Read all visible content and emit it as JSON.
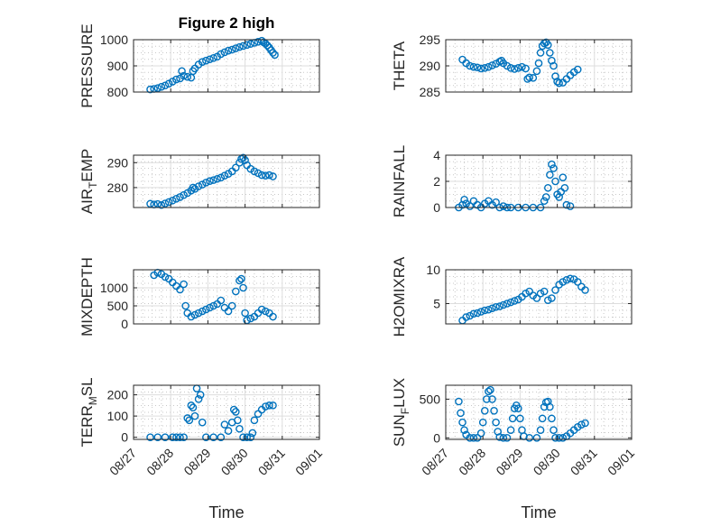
{
  "figure": {
    "title": "Figure 2 high",
    "xlabel": "Time",
    "x_ticks": [
      "08/27",
      "08/28",
      "08/29",
      "08/30",
      "08/31",
      "09/01"
    ]
  },
  "chart_data": [
    {
      "type": "scatter",
      "ylabel": "PRESSURE",
      "ylabel_main": "PRESSURE",
      "ylabel_sub": "",
      "ylabel_tail": "",
      "x_range": [
        "08/27",
        "09/01"
      ],
      "ylim": [
        800,
        1000
      ],
      "yticks": [
        800,
        900,
        1000
      ],
      "points": [
        [
          27.3,
          810
        ],
        [
          27.4,
          812
        ],
        [
          27.5,
          815
        ],
        [
          27.6,
          820
        ],
        [
          27.7,
          825
        ],
        [
          27.8,
          832
        ],
        [
          27.9,
          840
        ],
        [
          28.0,
          848
        ],
        [
          28.1,
          852
        ],
        [
          28.15,
          880
        ],
        [
          28.2,
          862
        ],
        [
          28.3,
          858
        ],
        [
          28.4,
          855
        ],
        [
          28.45,
          880
        ],
        [
          28.5,
          890
        ],
        [
          28.6,
          905
        ],
        [
          28.7,
          915
        ],
        [
          28.8,
          920
        ],
        [
          28.9,
          925
        ],
        [
          29.0,
          930
        ],
        [
          29.1,
          935
        ],
        [
          29.2,
          945
        ],
        [
          29.3,
          952
        ],
        [
          29.4,
          958
        ],
        [
          29.5,
          962
        ],
        [
          29.6,
          967
        ],
        [
          29.7,
          972
        ],
        [
          29.8,
          976
        ],
        [
          29.9,
          980
        ],
        [
          30.0,
          984
        ],
        [
          30.1,
          988
        ],
        [
          30.2,
          992
        ],
        [
          30.3,
          996
        ],
        [
          30.35,
          990
        ],
        [
          30.4,
          985
        ],
        [
          30.45,
          978
        ],
        [
          30.5,
          970
        ],
        [
          30.55,
          960
        ],
        [
          30.6,
          950
        ],
        [
          30.65,
          942
        ]
      ]
    },
    {
      "type": "scatter",
      "ylabel": "THETA",
      "ylabel_main": "THETA",
      "ylabel_sub": "",
      "ylabel_tail": "",
      "x_range": [
        "08/27",
        "09/01"
      ],
      "ylim": [
        285,
        295
      ],
      "yticks": [
        285,
        290,
        295
      ],
      "points": [
        [
          27.3,
          291.2
        ],
        [
          27.4,
          290.5
        ],
        [
          27.5,
          290.0
        ],
        [
          27.6,
          289.8
        ],
        [
          27.7,
          289.7
        ],
        [
          27.8,
          289.5
        ],
        [
          27.9,
          289.6
        ],
        [
          28.0,
          289.8
        ],
        [
          28.1,
          290.1
        ],
        [
          28.2,
          290.4
        ],
        [
          28.3,
          290.8
        ],
        [
          28.35,
          291.0
        ],
        [
          28.4,
          290.5
        ],
        [
          28.5,
          290.0
        ],
        [
          28.6,
          289.6
        ],
        [
          28.7,
          289.4
        ],
        [
          28.8,
          289.6
        ],
        [
          28.9,
          289.8
        ],
        [
          29.0,
          289.5
        ],
        [
          29.05,
          287.5
        ],
        [
          29.1,
          287.8
        ],
        [
          29.2,
          287.7
        ],
        [
          29.3,
          289.0
        ],
        [
          29.35,
          290.5
        ],
        [
          29.4,
          292.5
        ],
        [
          29.45,
          293.8
        ],
        [
          29.5,
          294.3
        ],
        [
          29.55,
          294.5
        ],
        [
          29.6,
          294.0
        ],
        [
          29.65,
          292.5
        ],
        [
          29.7,
          291.0
        ],
        [
          29.75,
          290.0
        ],
        [
          29.8,
          288.0
        ],
        [
          29.85,
          287.0
        ],
        [
          29.9,
          286.7
        ],
        [
          30.0,
          286.8
        ],
        [
          30.1,
          287.5
        ],
        [
          30.2,
          288.2
        ],
        [
          30.3,
          288.8
        ],
        [
          30.4,
          289.3
        ]
      ]
    },
    {
      "type": "scatter",
      "ylabel": "AIR_TEMP",
      "ylabel_main": "AIR",
      "ylabel_sub": "T",
      "ylabel_tail": "EMP",
      "x_range": [
        "08/27",
        "09/01"
      ],
      "ylim": [
        272,
        293
      ],
      "yticks": [
        280,
        290
      ],
      "points": [
        [
          27.3,
          273.5
        ],
        [
          27.4,
          273.2
        ],
        [
          27.5,
          273.4
        ],
        [
          27.6,
          273.0
        ],
        [
          27.7,
          273.6
        ],
        [
          27.8,
          274.2
        ],
        [
          27.9,
          274.8
        ],
        [
          28.0,
          275.5
        ],
        [
          28.1,
          276.2
        ],
        [
          28.2,
          277.0
        ],
        [
          28.3,
          277.8
        ],
        [
          28.4,
          278.8
        ],
        [
          28.45,
          280.0
        ],
        [
          28.5,
          279.5
        ],
        [
          28.6,
          280.5
        ],
        [
          28.7,
          281.2
        ],
        [
          28.8,
          282.0
        ],
        [
          28.9,
          282.6
        ],
        [
          29.0,
          283.0
        ],
        [
          29.1,
          283.5
        ],
        [
          29.2,
          284.0
        ],
        [
          29.3,
          284.8
        ],
        [
          29.4,
          285.5
        ],
        [
          29.5,
          286.5
        ],
        [
          29.6,
          288.0
        ],
        [
          29.7,
          290.0
        ],
        [
          29.75,
          291.5
        ],
        [
          29.8,
          292.0
        ],
        [
          29.85,
          291.0
        ],
        [
          29.9,
          289.0
        ],
        [
          30.0,
          287.5
        ],
        [
          30.1,
          286.5
        ],
        [
          30.2,
          285.8
        ],
        [
          30.3,
          285.0
        ],
        [
          30.4,
          284.8
        ],
        [
          30.5,
          285.0
        ],
        [
          30.6,
          284.5
        ]
      ]
    },
    {
      "type": "scatter",
      "ylabel": "RAINFALL",
      "ylabel_main": "RAINFALL",
      "ylabel_sub": "",
      "ylabel_tail": "",
      "x_range": [
        "08/27",
        "09/01"
      ],
      "ylim": [
        0,
        4
      ],
      "yticks": [
        0,
        2,
        4
      ],
      "points": [
        [
          27.2,
          0.0
        ],
        [
          27.3,
          0.2
        ],
        [
          27.35,
          0.6
        ],
        [
          27.4,
          0.3
        ],
        [
          27.5,
          0.1
        ],
        [
          27.6,
          0.5
        ],
        [
          27.7,
          0.2
        ],
        [
          27.8,
          0.0
        ],
        [
          27.9,
          0.3
        ],
        [
          28.0,
          0.5
        ],
        [
          28.1,
          0.2
        ],
        [
          28.2,
          0.4
        ],
        [
          28.3,
          0.0
        ],
        [
          28.4,
          0.1
        ],
        [
          28.5,
          0.0
        ],
        [
          28.6,
          0.0
        ],
        [
          28.8,
          0.0
        ],
        [
          29.0,
          0.0
        ],
        [
          29.2,
          0.0
        ],
        [
          29.4,
          0.0
        ],
        [
          29.5,
          0.5
        ],
        [
          29.55,
          0.8
        ],
        [
          29.6,
          1.5
        ],
        [
          29.65,
          2.5
        ],
        [
          29.7,
          3.3
        ],
        [
          29.75,
          3.0
        ],
        [
          29.8,
          2.0
        ],
        [
          29.85,
          1.0
        ],
        [
          29.9,
          0.8
        ],
        [
          29.95,
          1.2
        ],
        [
          30.0,
          2.3
        ],
        [
          30.05,
          1.5
        ],
        [
          30.1,
          0.2
        ],
        [
          30.2,
          0.1
        ]
      ]
    },
    {
      "type": "scatter",
      "ylabel": "MIXDEPTH",
      "ylabel_main": "MIXDEPTH",
      "ylabel_sub": "",
      "ylabel_tail": "",
      "x_range": [
        "08/27",
        "09/01"
      ],
      "ylim": [
        0,
        1500
      ],
      "yticks": [
        0,
        500,
        1000
      ],
      "points": [
        [
          27.4,
          1350
        ],
        [
          27.5,
          1420
        ],
        [
          27.6,
          1380
        ],
        [
          27.7,
          1300
        ],
        [
          27.8,
          1250
        ],
        [
          27.9,
          1150
        ],
        [
          28.0,
          1050
        ],
        [
          28.1,
          950
        ],
        [
          28.2,
          1100
        ],
        [
          28.25,
          500
        ],
        [
          28.3,
          300
        ],
        [
          28.4,
          200
        ],
        [
          28.5,
          250
        ],
        [
          28.6,
          300
        ],
        [
          28.7,
          350
        ],
        [
          28.8,
          400
        ],
        [
          28.9,
          450
        ],
        [
          29.0,
          500
        ],
        [
          29.1,
          550
        ],
        [
          29.2,
          650
        ],
        [
          29.3,
          450
        ],
        [
          29.4,
          350
        ],
        [
          29.5,
          500
        ],
        [
          29.6,
          900
        ],
        [
          29.7,
          1200
        ],
        [
          29.75,
          1250
        ],
        [
          29.8,
          1000
        ],
        [
          29.85,
          300
        ],
        [
          29.9,
          100
        ],
        [
          30.0,
          150
        ],
        [
          30.1,
          200
        ],
        [
          30.2,
          300
        ],
        [
          30.3,
          400
        ],
        [
          30.4,
          350
        ],
        [
          30.5,
          300
        ],
        [
          30.6,
          200
        ]
      ]
    },
    {
      "type": "scatter",
      "ylabel": "H2OMIXRA",
      "ylabel_main": "H2OMIXRA",
      "ylabel_sub": "",
      "ylabel_tail": "",
      "x_range": [
        "08/27",
        "09/01"
      ],
      "ylim": [
        2,
        10
      ],
      "yticks": [
        5,
        10
      ],
      "points": [
        [
          27.3,
          2.5
        ],
        [
          27.4,
          3.0
        ],
        [
          27.5,
          3.2
        ],
        [
          27.6,
          3.5
        ],
        [
          27.7,
          3.6
        ],
        [
          27.8,
          3.8
        ],
        [
          27.9,
          4.0
        ],
        [
          28.0,
          4.1
        ],
        [
          28.1,
          4.3
        ],
        [
          28.2,
          4.5
        ],
        [
          28.3,
          4.6
        ],
        [
          28.4,
          4.8
        ],
        [
          28.5,
          5.0
        ],
        [
          28.6,
          5.2
        ],
        [
          28.7,
          5.4
        ],
        [
          28.8,
          5.6
        ],
        [
          28.9,
          6.0
        ],
        [
          29.0,
          6.5
        ],
        [
          29.1,
          6.8
        ],
        [
          29.2,
          6.2
        ],
        [
          29.3,
          5.8
        ],
        [
          29.4,
          6.5
        ],
        [
          29.5,
          6.8
        ],
        [
          29.6,
          5.5
        ],
        [
          29.7,
          5.8
        ],
        [
          29.8,
          7.0
        ],
        [
          29.9,
          7.8
        ],
        [
          30.0,
          8.2
        ],
        [
          30.1,
          8.5
        ],
        [
          30.2,
          8.7
        ],
        [
          30.3,
          8.6
        ],
        [
          30.4,
          8.2
        ],
        [
          30.5,
          7.5
        ],
        [
          30.6,
          7.0
        ]
      ]
    },
    {
      "type": "scatter",
      "ylabel": "TERR_MSL",
      "ylabel_main": "TERR",
      "ylabel_sub": "M",
      "ylabel_tail": "SL",
      "x_range": [
        "08/27",
        "09/01"
      ],
      "ylim": [
        -10,
        245
      ],
      "yticks": [
        0,
        100,
        200
      ],
      "points": [
        [
          27.3,
          0
        ],
        [
          27.5,
          0
        ],
        [
          27.7,
          0
        ],
        [
          27.9,
          0
        ],
        [
          28.0,
          0
        ],
        [
          28.1,
          0
        ],
        [
          28.2,
          0
        ],
        [
          28.3,
          90
        ],
        [
          28.35,
          80
        ],
        [
          28.4,
          150
        ],
        [
          28.45,
          140
        ],
        [
          28.5,
          100
        ],
        [
          28.55,
          230
        ],
        [
          28.6,
          180
        ],
        [
          28.65,
          200
        ],
        [
          28.7,
          70
        ],
        [
          28.8,
          0
        ],
        [
          29.0,
          0
        ],
        [
          29.2,
          0
        ],
        [
          29.3,
          60
        ],
        [
          29.4,
          30
        ],
        [
          29.5,
          70
        ],
        [
          29.55,
          130
        ],
        [
          29.6,
          120
        ],
        [
          29.65,
          80
        ],
        [
          29.7,
          40
        ],
        [
          29.8,
          0
        ],
        [
          29.9,
          0
        ],
        [
          30.0,
          0
        ],
        [
          30.05,
          20
        ],
        [
          30.1,
          80
        ],
        [
          30.2,
          110
        ],
        [
          30.3,
          130
        ],
        [
          30.4,
          145
        ],
        [
          30.5,
          150
        ],
        [
          30.6,
          150
        ]
      ]
    },
    {
      "type": "scatter",
      "ylabel": "SUN_FLUX",
      "ylabel_main": "SUN",
      "ylabel_sub": "F",
      "ylabel_tail": "LUX",
      "x_range": [
        "08/27",
        "09/01"
      ],
      "ylim": [
        -20,
        680
      ],
      "yticks": [
        0,
        500
      ],
      "points": [
        [
          27.2,
          470
        ],
        [
          27.25,
          320
        ],
        [
          27.3,
          200
        ],
        [
          27.35,
          100
        ],
        [
          27.4,
          40
        ],
        [
          27.5,
          0
        ],
        [
          27.6,
          0
        ],
        [
          27.7,
          0
        ],
        [
          27.8,
          60
        ],
        [
          27.85,
          200
        ],
        [
          27.9,
          350
        ],
        [
          27.95,
          500
        ],
        [
          28.0,
          600
        ],
        [
          28.05,
          620
        ],
        [
          28.1,
          500
        ],
        [
          28.15,
          350
        ],
        [
          28.2,
          200
        ],
        [
          28.25,
          80
        ],
        [
          28.3,
          10
        ],
        [
          28.4,
          0
        ],
        [
          28.5,
          0
        ],
        [
          28.6,
          100
        ],
        [
          28.65,
          250
        ],
        [
          28.7,
          380
        ],
        [
          28.75,
          420
        ],
        [
          28.8,
          380
        ],
        [
          28.85,
          250
        ],
        [
          28.9,
          100
        ],
        [
          28.95,
          20
        ],
        [
          29.1,
          0
        ],
        [
          29.3,
          0
        ],
        [
          29.4,
          100
        ],
        [
          29.45,
          250
        ],
        [
          29.5,
          400
        ],
        [
          29.55,
          460
        ],
        [
          29.6,
          470
        ],
        [
          29.65,
          400
        ],
        [
          29.7,
          250
        ],
        [
          29.75,
          100
        ],
        [
          29.8,
          0
        ],
        [
          29.9,
          0
        ],
        [
          30.0,
          0
        ],
        [
          30.1,
          20
        ],
        [
          30.2,
          60
        ],
        [
          30.3,
          100
        ],
        [
          30.4,
          140
        ],
        [
          30.5,
          170
        ],
        [
          30.6,
          190
        ]
      ]
    }
  ]
}
